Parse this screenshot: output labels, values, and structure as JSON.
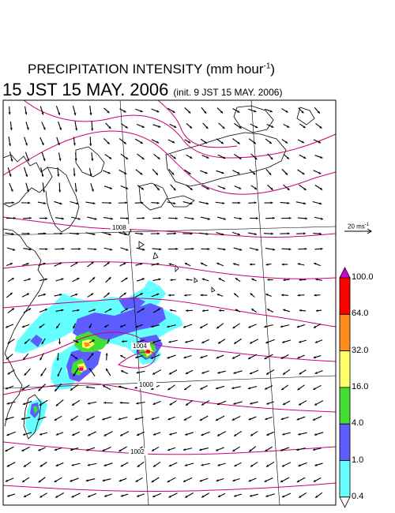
{
  "title": {
    "text": "PRECIPITATION INTENSITY (mm hour",
    "unit_sup": "-1",
    "close": ")"
  },
  "subtitle": {
    "valid_time": "15 JST 15 MAY. 2006",
    "init_time": "(init. 9 JST 15 MAY. 2006)"
  },
  "reference_vector": {
    "label": "20 ms",
    "unit_sup": "-1"
  },
  "colorbar": {
    "labels": [
      "100.0",
      "64.0",
      "32.0",
      "16.0",
      "4.0",
      "1.0",
      "0.4"
    ],
    "colors": [
      "#d400d4",
      "#ff0000",
      "#ff8c1a",
      "#ffff66",
      "#44dd33",
      "#5c5cff",
      "#66ffff",
      "#ffffff"
    ]
  },
  "isobars": {
    "labels": [
      "1008",
      "1004",
      "1000",
      "1002"
    ]
  },
  "map_colors": {
    "frame": "#000000",
    "isobar": "#cc0077",
    "coast": "#000000",
    "grid": "#000000"
  }
}
